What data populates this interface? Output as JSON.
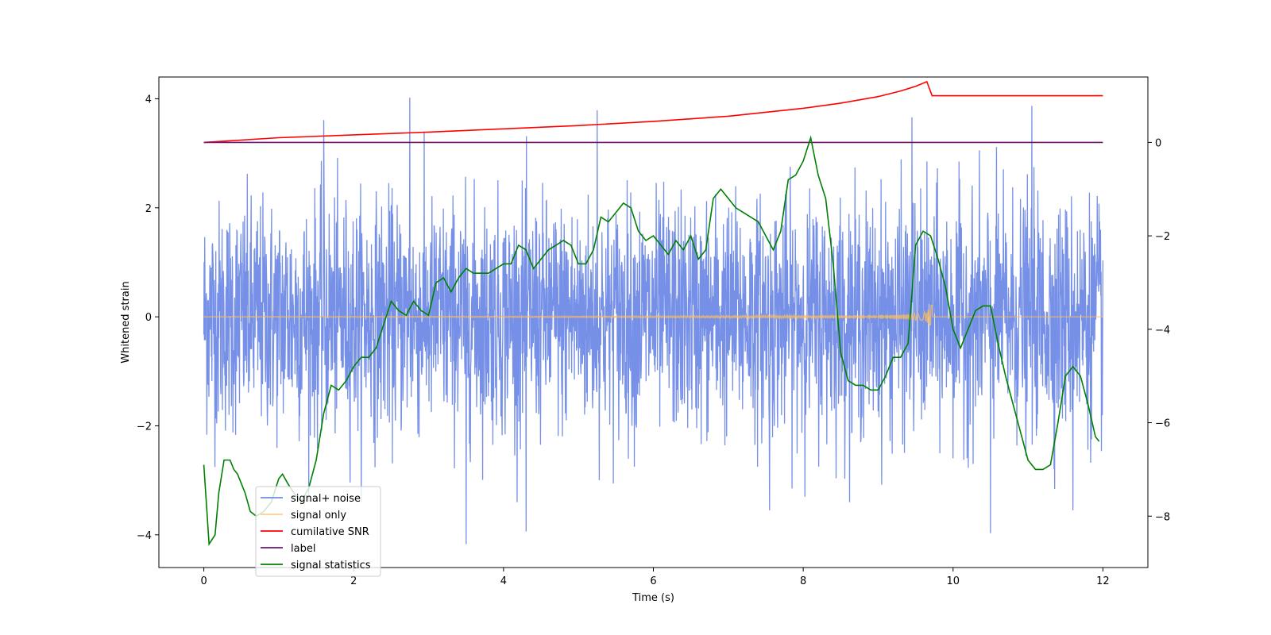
{
  "chart_data": {
    "type": "line",
    "title": "",
    "xlabel": "Time (s)",
    "ylabel_left": "Whitened strain",
    "ylabel_right": "",
    "xlim": [
      -0.6,
      12.6
    ],
    "ylim_left": [
      -4.6,
      4.4
    ],
    "ylim_right": [
      -9.1,
      1.4
    ],
    "x_ticks": [
      0,
      2,
      4,
      6,
      8,
      10,
      12
    ],
    "x_tick_labels": [
      "0",
      "2",
      "4",
      "6",
      "8",
      "10",
      "12"
    ],
    "y_left_ticks": [
      -4,
      -2,
      0,
      2,
      4
    ],
    "y_left_tick_labels": [
      "−4",
      "−2",
      "0",
      "2",
      "4"
    ],
    "y_right_ticks": [
      -8,
      -6,
      -4,
      -2,
      0
    ],
    "y_right_tick_labels": [
      "−8",
      "−6",
      "−4",
      "−2",
      "0"
    ],
    "grid": false,
    "legend_position": "lower-left",
    "series": [
      {
        "name": "signal+ noise",
        "axis": "left",
        "color": "#6f8ae6",
        "description": "dense noisy trace, roughly uniform amplitude, ~±2.5 with spikes to ±4",
        "x_range": [
          0,
          12
        ],
        "sample_count": 3000,
        "peak_samples": [
          {
            "x": 2.75,
            "y": 4.02
          },
          {
            "x": 11.05,
            "y": 3.87
          },
          {
            "x": 9.45,
            "y": 3.66
          },
          {
            "x": 1.6,
            "y": 3.61
          },
          {
            "x": 5.25,
            "y": 3.79
          },
          {
            "x": 3.5,
            "y": -4.17
          },
          {
            "x": 4.3,
            "y": -3.94
          },
          {
            "x": 10.5,
            "y": -3.97
          },
          {
            "x": 7.55,
            "y": -3.55
          },
          {
            "x": 11.6,
            "y": -3.55
          }
        ]
      },
      {
        "name": "signal only",
        "axis": "left",
        "color": "#ffbe5c",
        "description": "chirp signal growing in amplitude, ending ~9.7 s with amplitude ~0.3",
        "chirp_end": 9.72,
        "chirp_max_amplitude": 0.3
      },
      {
        "name": "cumilative SNR",
        "axis": "right",
        "color": "#ff0000",
        "x": [
          0,
          1,
          2,
          3,
          4,
          5,
          6,
          7,
          8,
          8.5,
          9,
          9.3,
          9.5,
          9.65,
          9.72,
          10,
          11,
          12
        ],
        "y": [
          0,
          0.1,
          0.16,
          0.22,
          0.29,
          0.36,
          0.45,
          0.56,
          0.73,
          0.84,
          0.98,
          1.1,
          1.2,
          1.3,
          1.0,
          1.0,
          1.0,
          1.0
        ]
      },
      {
        "name": "label",
        "axis": "right",
        "color": "#6b1472",
        "x": [
          0,
          12
        ],
        "y": [
          0,
          0
        ]
      },
      {
        "name": "signal statistics",
        "axis": "right",
        "color": "#008000",
        "x": [
          0,
          0.07,
          0.15,
          0.2,
          0.27,
          0.35,
          0.4,
          0.45,
          0.55,
          0.62,
          0.7,
          0.8,
          0.9,
          1.0,
          1.05,
          1.12,
          1.2,
          1.3,
          1.4,
          1.5,
          1.6,
          1.7,
          1.8,
          1.9,
          2.0,
          2.1,
          2.2,
          2.3,
          2.4,
          2.5,
          2.6,
          2.7,
          2.8,
          2.9,
          3.0,
          3.1,
          3.2,
          3.3,
          3.4,
          3.5,
          3.6,
          3.7,
          3.8,
          3.9,
          4.0,
          4.1,
          4.2,
          4.3,
          4.4,
          4.5,
          4.6,
          4.7,
          4.8,
          4.9,
          5.0,
          5.1,
          5.2,
          5.3,
          5.4,
          5.5,
          5.6,
          5.7,
          5.8,
          5.9,
          6.0,
          6.1,
          6.2,
          6.3,
          6.4,
          6.5,
          6.6,
          6.7,
          6.8,
          6.9,
          7.0,
          7.1,
          7.2,
          7.3,
          7.4,
          7.5,
          7.6,
          7.7,
          7.8,
          7.9,
          8.0,
          8.1,
          8.2,
          8.3,
          8.4,
          8.5,
          8.6,
          8.7,
          8.8,
          8.9,
          9.0,
          9.1,
          9.2,
          9.3,
          9.4,
          9.5,
          9.6,
          9.7,
          9.8,
          9.9,
          10.0,
          10.1,
          10.2,
          10.3,
          10.4,
          10.5,
          10.6,
          10.7,
          10.8,
          10.9,
          11.0,
          11.1,
          11.2,
          11.3,
          11.4,
          11.5,
          11.6,
          11.7,
          11.8,
          11.9,
          11.95
        ],
        "y": [
          -6.9,
          -8.6,
          -8.4,
          -7.5,
          -6.8,
          -6.8,
          -7.0,
          -7.1,
          -7.5,
          -7.9,
          -8.0,
          -7.9,
          -7.7,
          -7.2,
          -7.1,
          -7.3,
          -7.5,
          -7.7,
          -7.4,
          -6.8,
          -5.8,
          -5.2,
          -5.3,
          -5.1,
          -4.8,
          -4.6,
          -4.6,
          -4.4,
          -3.9,
          -3.4,
          -3.6,
          -3.7,
          -3.4,
          -3.6,
          -3.7,
          -3.0,
          -2.9,
          -3.2,
          -2.9,
          -2.7,
          -2.8,
          -2.8,
          -2.8,
          -2.7,
          -2.6,
          -2.6,
          -2.2,
          -2.3,
          -2.7,
          -2.5,
          -2.3,
          -2.2,
          -2.1,
          -2.2,
          -2.6,
          -2.6,
          -2.3,
          -1.6,
          -1.7,
          -1.5,
          -1.3,
          -1.4,
          -1.9,
          -2.1,
          -2.0,
          -2.2,
          -2.4,
          -2.1,
          -2.3,
          -2.0,
          -2.5,
          -2.3,
          -1.2,
          -1.0,
          -1.2,
          -1.4,
          -1.5,
          -1.6,
          -1.7,
          -2.0,
          -2.3,
          -1.9,
          -0.8,
          -0.7,
          -0.4,
          0.1,
          -0.7,
          -1.2,
          -2.6,
          -4.5,
          -5.1,
          -5.2,
          -5.2,
          -5.3,
          -5.3,
          -5.0,
          -4.6,
          -4.6,
          -4.3,
          -2.2,
          -1.9,
          -2.0,
          -2.5,
          -3.1,
          -4.0,
          -4.4,
          -4.0,
          -3.6,
          -3.5,
          -3.5,
          -4.3,
          -5.0,
          -5.6,
          -6.2,
          -6.8,
          -7.0,
          -7.0,
          -6.9,
          -6.0,
          -5.0,
          -4.8,
          -5.0,
          -5.6,
          -6.3,
          -6.4
        ]
      }
    ],
    "legend": [
      {
        "label": "signal+ noise",
        "color": "#6f8ae6"
      },
      {
        "label": "signal only",
        "color": "#ffbe5c"
      },
      {
        "label": "cumilative SNR",
        "color": "#ff0000"
      },
      {
        "label": "label",
        "color": "#6b1472"
      },
      {
        "label": "signal statistics",
        "color": "#008000"
      }
    ]
  }
}
